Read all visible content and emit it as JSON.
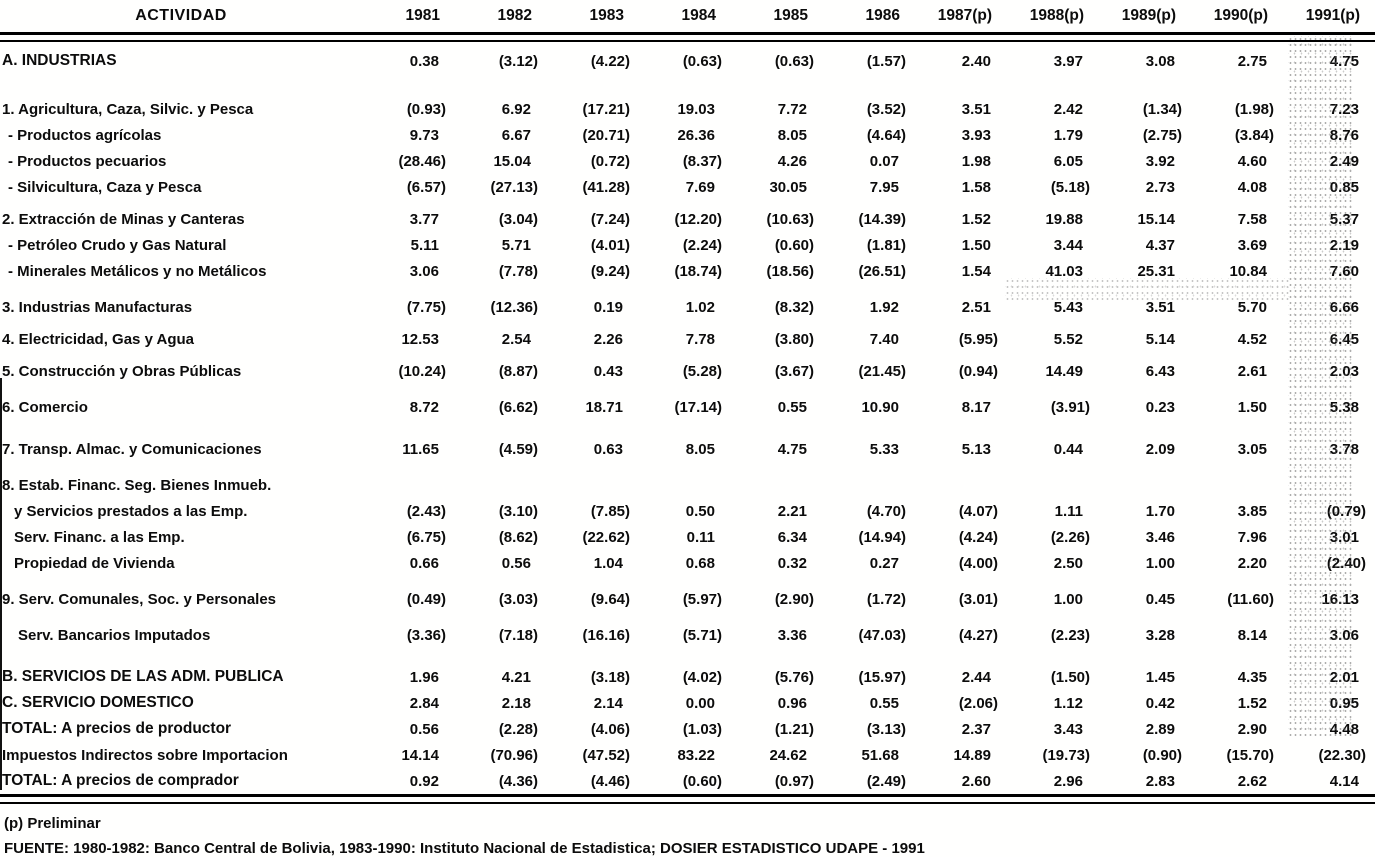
{
  "table": {
    "header": {
      "activity_label": "ACTIVIDAD",
      "years": [
        "1981",
        "1982",
        "1983",
        "1984",
        "1985",
        "1986",
        "1987(p)",
        "1988(p)",
        "1989(p)",
        "1990(p)",
        "1991(p)"
      ]
    },
    "rows": [
      {
        "label": "A. INDUSTRIAS",
        "style": "section",
        "gap": "",
        "indent": 0,
        "values": [
          "0.38",
          "(3.12)",
          "(4.22)",
          "(0.63)",
          "(0.63)",
          "(1.57)",
          "2.40",
          "3.97",
          "3.08",
          "2.75",
          "4.75"
        ]
      },
      {
        "label": "1. Agricultura, Caza, Silvic. y Pesca",
        "style": "",
        "gap": "xl",
        "indent": 0,
        "values": [
          "(0.93)",
          "6.92",
          "(17.21)",
          "19.03",
          "7.72",
          "(3.52)",
          "3.51",
          "2.42",
          "(1.34)",
          "(1.98)",
          "7.23"
        ]
      },
      {
        "label": "- Productos agrícolas",
        "style": "",
        "gap": "",
        "indent": 1,
        "values": [
          "9.73",
          "6.67",
          "(20.71)",
          "26.36",
          "8.05",
          "(4.64)",
          "3.93",
          "1.79",
          "(2.75)",
          "(3.84)",
          "8.76"
        ]
      },
      {
        "label": "- Productos pecuarios",
        "style": "",
        "gap": "",
        "indent": 1,
        "values": [
          "(28.46)",
          "15.04",
          "(0.72)",
          "(8.37)",
          "4.26",
          "0.07",
          "1.98",
          "6.05",
          "3.92",
          "4.60",
          "2.49"
        ]
      },
      {
        "label": "- Silvicultura, Caza y Pesca",
        "style": "",
        "gap": "",
        "indent": 1,
        "values": [
          "(6.57)",
          "(27.13)",
          "(41.28)",
          "7.69",
          "30.05",
          "7.95",
          "1.58",
          "(5.18)",
          "2.73",
          "4.08",
          "0.85"
        ]
      },
      {
        "label": "2. Extracción de Minas y Canteras",
        "style": "",
        "gap": "sm",
        "indent": 0,
        "values": [
          "3.77",
          "(3.04)",
          "(7.24)",
          "(12.20)",
          "(10.63)",
          "(14.39)",
          "1.52",
          "19.88",
          "15.14",
          "7.58",
          "5.37"
        ]
      },
      {
        "label": "- Petróleo Crudo y Gas Natural",
        "style": "",
        "gap": "",
        "indent": 1,
        "values": [
          "5.11",
          "5.71",
          "(4.01)",
          "(2.24)",
          "(0.60)",
          "(1.81)",
          "1.50",
          "3.44",
          "4.37",
          "3.69",
          "2.19"
        ]
      },
      {
        "label": "- Minerales Metálicos y no Metálicos",
        "style": "",
        "gap": "",
        "indent": 1,
        "values": [
          "3.06",
          "(7.78)",
          "(9.24)",
          "(18.74)",
          "(18.56)",
          "(26.51)",
          "1.54",
          "41.03",
          "25.31",
          "10.84",
          "7.60"
        ]
      },
      {
        "label": "3. Industrias Manufacturas",
        "style": "",
        "gap": "md",
        "indent": 0,
        "values": [
          "(7.75)",
          "(12.36)",
          "0.19",
          "1.02",
          "(8.32)",
          "1.92",
          "2.51",
          "5.43",
          "3.51",
          "5.70",
          "6.66"
        ]
      },
      {
        "label": "4. Electricidad, Gas y Agua",
        "style": "",
        "gap": "sm",
        "indent": 0,
        "values": [
          "12.53",
          "2.54",
          "2.26",
          "7.78",
          "(3.80)",
          "7.40",
          "(5.95)",
          "5.52",
          "5.14",
          "4.52",
          "6.45"
        ]
      },
      {
        "label": "5. Construcción y Obras Públicas",
        "style": "",
        "gap": "sm",
        "indent": 0,
        "values": [
          "(10.24)",
          "(8.87)",
          "0.43",
          "(5.28)",
          "(3.67)",
          "(21.45)",
          "(0.94)",
          "14.49",
          "6.43",
          "2.61",
          "2.03"
        ]
      },
      {
        "label": "6. Comercio",
        "style": "",
        "gap": "md",
        "indent": 0,
        "values": [
          "8.72",
          "(6.62)",
          "18.71",
          "(17.14)",
          "0.55",
          "10.90",
          "8.17",
          "(3.91)",
          "0.23",
          "1.50",
          "5.38"
        ]
      },
      {
        "label": "7. Transp. Almac. y Comunicaciones",
        "style": "",
        "gap": "lg",
        "indent": 0,
        "values": [
          "11.65",
          "(4.59)",
          "0.63",
          "8.05",
          "4.75",
          "5.33",
          "5.13",
          "0.44",
          "2.09",
          "3.05",
          "3.78"
        ]
      },
      {
        "label": "8. Estab. Financ. Seg. Bienes Inmueb.",
        "style": "",
        "gap": "md",
        "indent": 0,
        "values": []
      },
      {
        "label": "y Servicios prestados a las Emp.",
        "style": "",
        "gap": "",
        "indent": 2,
        "values": [
          "(2.43)",
          "(3.10)",
          "(7.85)",
          "0.50",
          "2.21",
          "(4.70)",
          "(4.07)",
          "1.11",
          "1.70",
          "3.85",
          "(0.79)"
        ]
      },
      {
        "label": "Serv. Financ. a las Emp.",
        "style": "",
        "gap": "",
        "indent": 2,
        "values": [
          "(6.75)",
          "(8.62)",
          "(22.62)",
          "0.11",
          "6.34",
          "(14.94)",
          "(4.24)",
          "(2.26)",
          "3.46",
          "7.96",
          "3.01"
        ]
      },
      {
        "label": "Propiedad de Vivienda",
        "style": "",
        "gap": "",
        "indent": 2,
        "values": [
          "0.66",
          "0.56",
          "1.04",
          "0.68",
          "0.32",
          "0.27",
          "(4.00)",
          "2.50",
          "1.00",
          "2.20",
          "(2.40)"
        ]
      },
      {
        "label": "9. Serv. Comunales, Soc. y Personales",
        "style": "",
        "gap": "md",
        "indent": 0,
        "values": [
          "(0.49)",
          "(3.03)",
          "(9.64)",
          "(5.97)",
          "(2.90)",
          "(1.72)",
          "(3.01)",
          "1.00",
          "0.45",
          "(11.60)",
          "16.13"
        ]
      },
      {
        "label": "Serv. Bancarios Imputados",
        "style": "",
        "gap": "md",
        "indent": 3,
        "values": [
          "(3.36)",
          "(7.18)",
          "(16.16)",
          "(5.71)",
          "3.36",
          "(47.03)",
          "(4.27)",
          "(2.23)",
          "3.28",
          "8.14",
          "3.06"
        ]
      },
      {
        "label": "B. SERVICIOS DE LAS ADM. PUBLICA",
        "style": "section",
        "gap": "lg",
        "indent": 0,
        "values": [
          "1.96",
          "4.21",
          "(3.18)",
          "(4.02)",
          "(5.76)",
          "(15.97)",
          "2.44",
          "(1.50)",
          "1.45",
          "4.35",
          "2.01"
        ]
      },
      {
        "label": "C. SERVICIO DOMESTICO",
        "style": "section",
        "gap": "",
        "indent": 0,
        "values": [
          "2.84",
          "2.18",
          "2.14",
          "0.00",
          "0.96",
          "0.55",
          "(2.06)",
          "1.12",
          "0.42",
          "1.52",
          "0.95"
        ]
      },
      {
        "label": "TOTAL: A precios de productor",
        "style": "section",
        "gap": "",
        "indent": 0,
        "values": [
          "0.56",
          "(2.28)",
          "(4.06)",
          "(1.03)",
          "(1.21)",
          "(3.13)",
          "2.37",
          "3.43",
          "2.89",
          "2.90",
          "4.48"
        ]
      },
      {
        "label": "Impuestos Indirectos sobre Importacion",
        "style": "",
        "gap": "",
        "indent": 0,
        "values": [
          "14.14",
          "(70.96)",
          "(47.52)",
          "83.22",
          "24.62",
          "51.68",
          "14.89",
          "(19.73)",
          "(0.90)",
          "(15.70)",
          "(22.30)"
        ]
      },
      {
        "label": "TOTAL: A precios de comprador",
        "style": "section",
        "gap": "",
        "indent": 0,
        "values": [
          "0.92",
          "(4.36)",
          "(4.46)",
          "(0.60)",
          "(0.97)",
          "(2.49)",
          "2.60",
          "2.96",
          "2.83",
          "2.62",
          "4.14"
        ]
      }
    ]
  },
  "footnotes": {
    "preliminary": "(p) Preliminar",
    "source": "FUENTE: 1980-1982: Banco Central de Bolivia, 1983-1990: Instituto Nacional de Estadistica; DOSIER ESTADISTICO UDAPE - 1991"
  }
}
